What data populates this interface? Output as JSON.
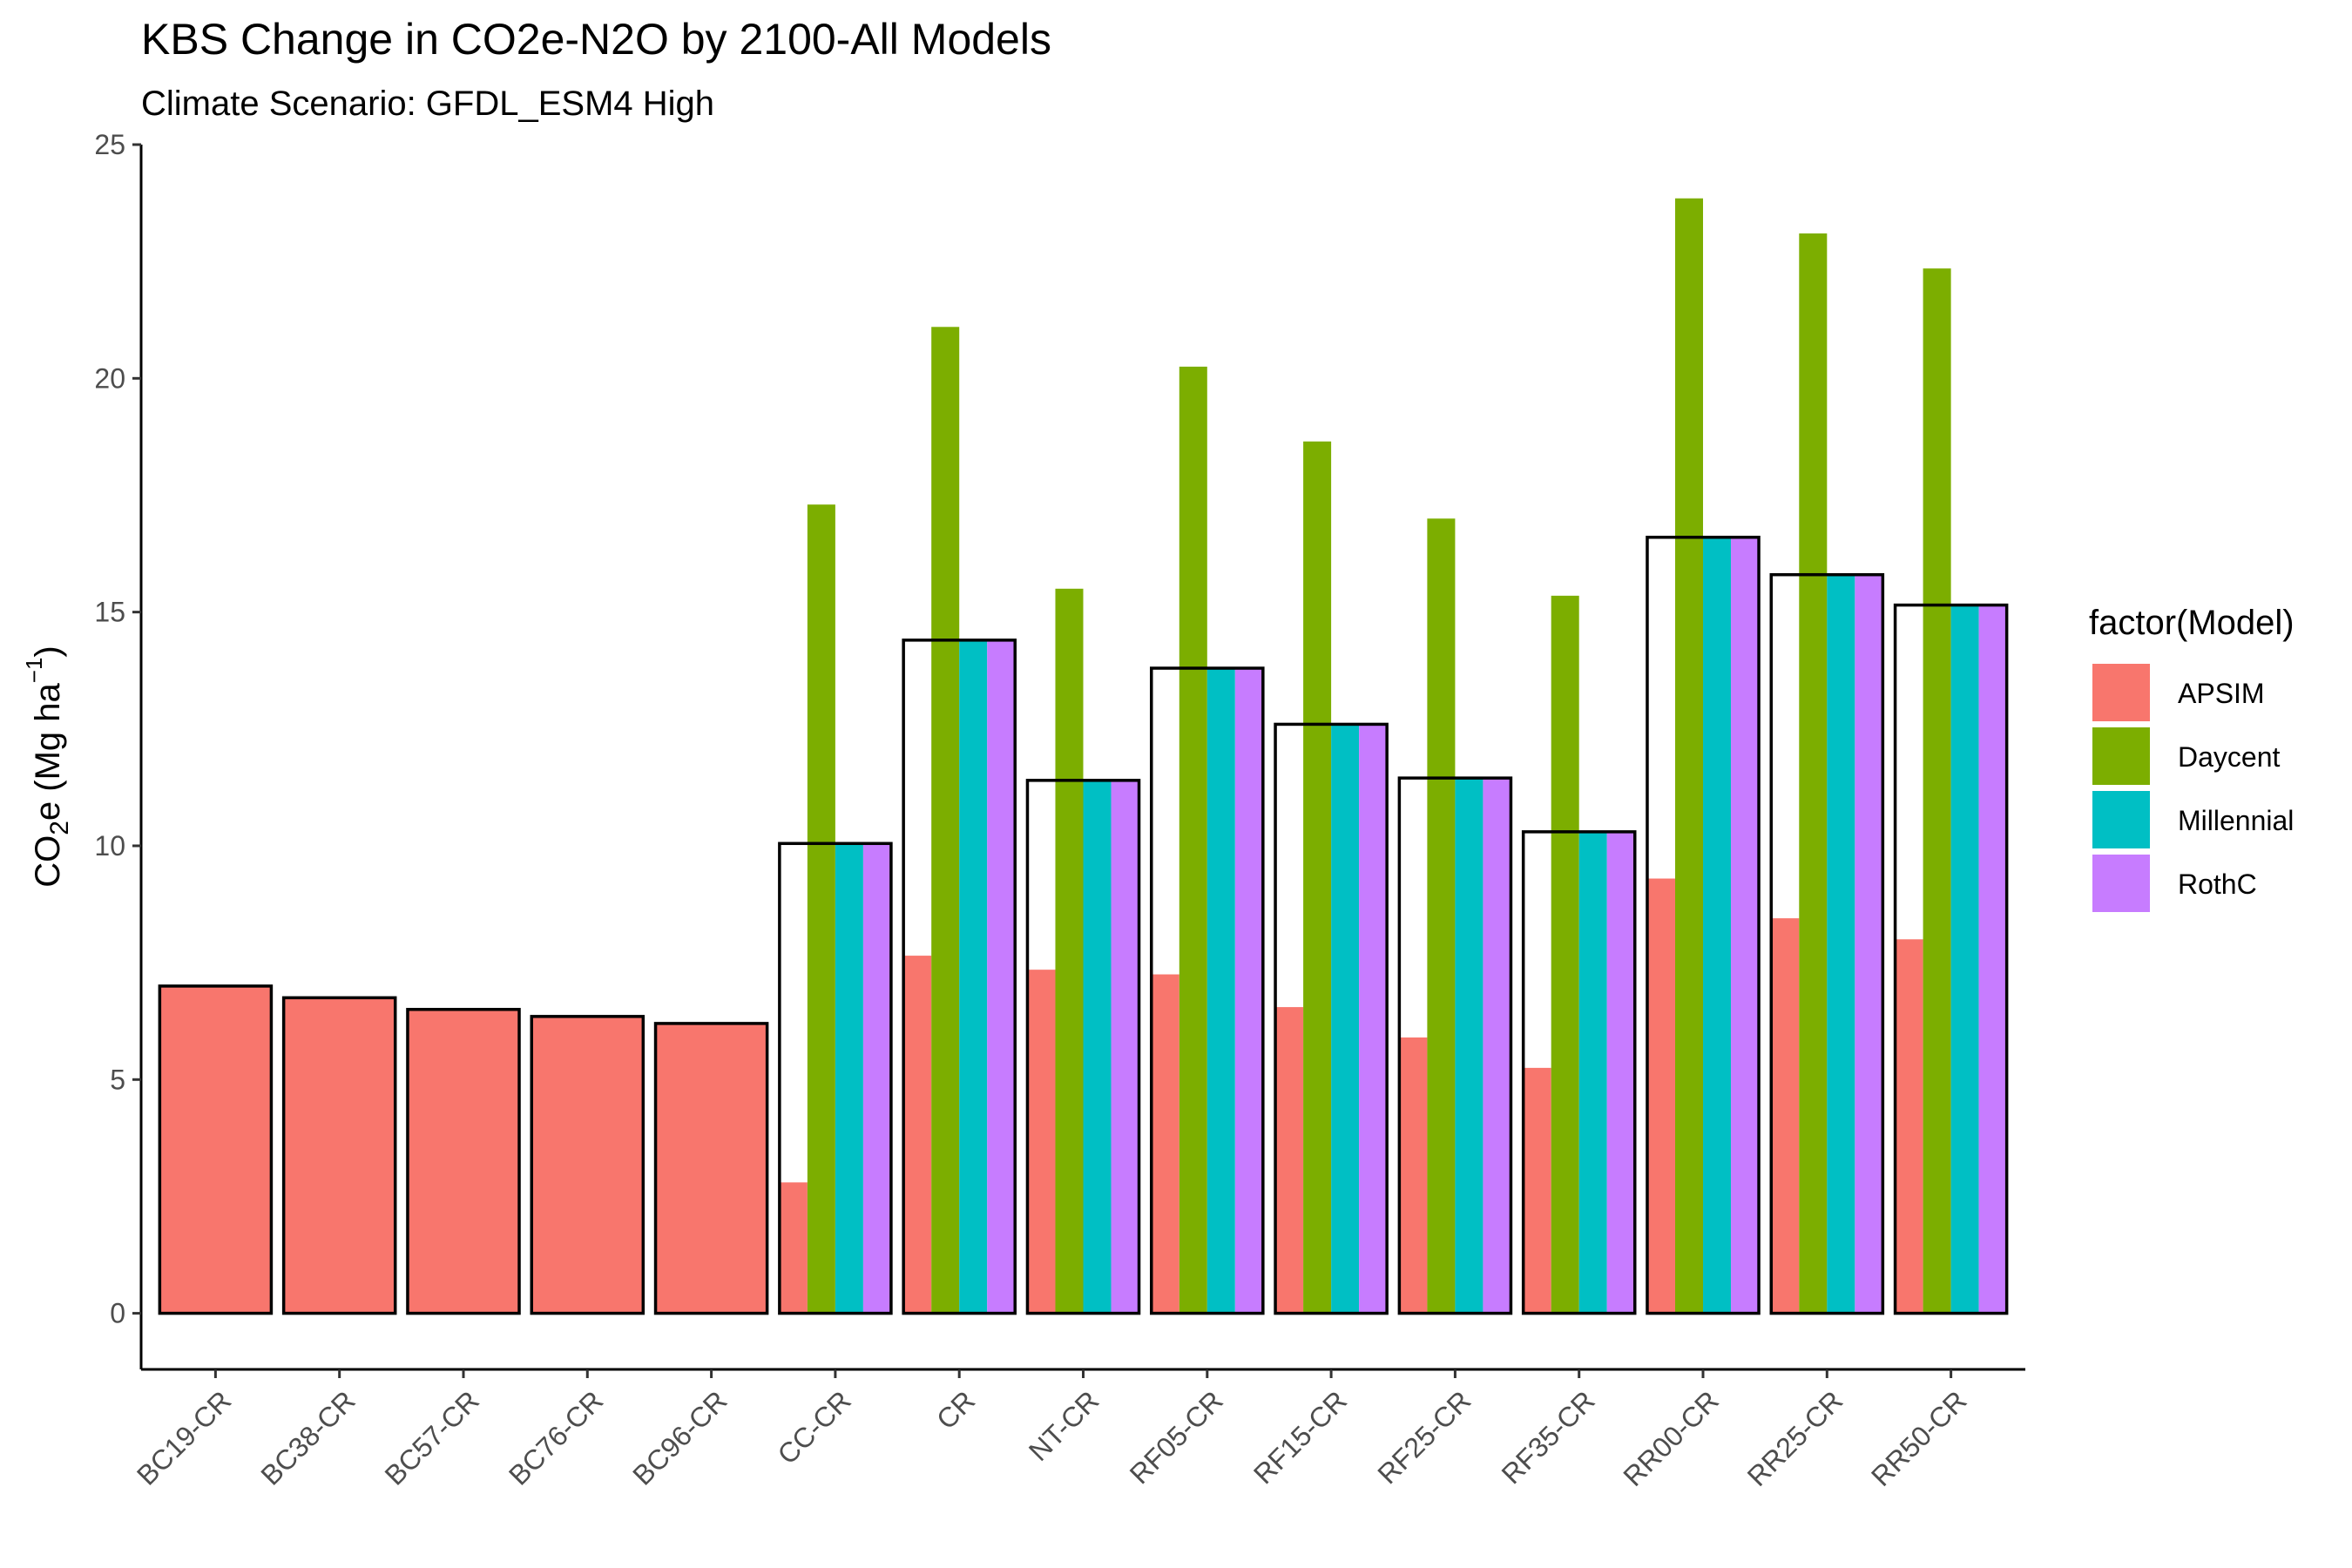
{
  "chart_data": {
    "type": "bar",
    "title": "KBS Change in CO2e-N2O by 2100-All Models",
    "subtitle": "Climate Scenario: GFDL_ESM4 High",
    "ylabel": {
      "base": "CO",
      "sub": "2",
      "rest": "e (Mg ha",
      "sup": "−1",
      "close": ")"
    },
    "xlabel": "",
    "ylim": [
      -1.2,
      25
    ],
    "yticks": [
      0,
      5,
      10,
      15,
      20,
      25
    ],
    "grid": false,
    "categories": [
      "BC19-CR",
      "BC38-CR",
      "BC57-CR",
      "BC76-CR",
      "BC96-CR",
      "CC-CR",
      "CR",
      "NT-CR",
      "RF05-CR",
      "RF15-CR",
      "RF25-CR",
      "RF35-CR",
      "RR00-CR",
      "RR25-CR",
      "RR50-CR"
    ],
    "series": [
      {
        "name": "APSIM",
        "color": "#F8766D",
        "values": [
          7.0,
          6.75,
          6.5,
          6.35,
          6.2,
          2.8,
          7.65,
          7.35,
          7.25,
          6.55,
          5.9,
          5.25,
          9.3,
          8.45,
          8.0
        ]
      },
      {
        "name": "Daycent",
        "color": "#7CAE00",
        "values": [
          null,
          null,
          null,
          null,
          null,
          17.3,
          21.1,
          15.5,
          20.25,
          18.65,
          17.0,
          15.35,
          23.85,
          23.1,
          22.35
        ]
      },
      {
        "name": "Millennial",
        "color": "#00BFC4",
        "values": [
          null,
          null,
          null,
          null,
          null,
          10.05,
          14.4,
          11.4,
          13.8,
          12.6,
          11.45,
          10.3,
          16.6,
          15.8,
          15.15
        ]
      },
      {
        "name": "RothC",
        "color": "#C77CFF",
        "values": [
          null,
          null,
          null,
          null,
          null,
          10.05,
          14.4,
          11.4,
          13.8,
          12.6,
          11.45,
          10.3,
          16.6,
          15.8,
          15.15
        ]
      }
    ],
    "outline_values": [
      7.0,
      6.75,
      6.5,
      6.35,
      6.2,
      10.05,
      14.4,
      11.4,
      13.8,
      12.6,
      11.45,
      10.3,
      16.6,
      15.8,
      15.15
    ],
    "legend": {
      "title": "factor(Model)",
      "position": "right"
    }
  }
}
